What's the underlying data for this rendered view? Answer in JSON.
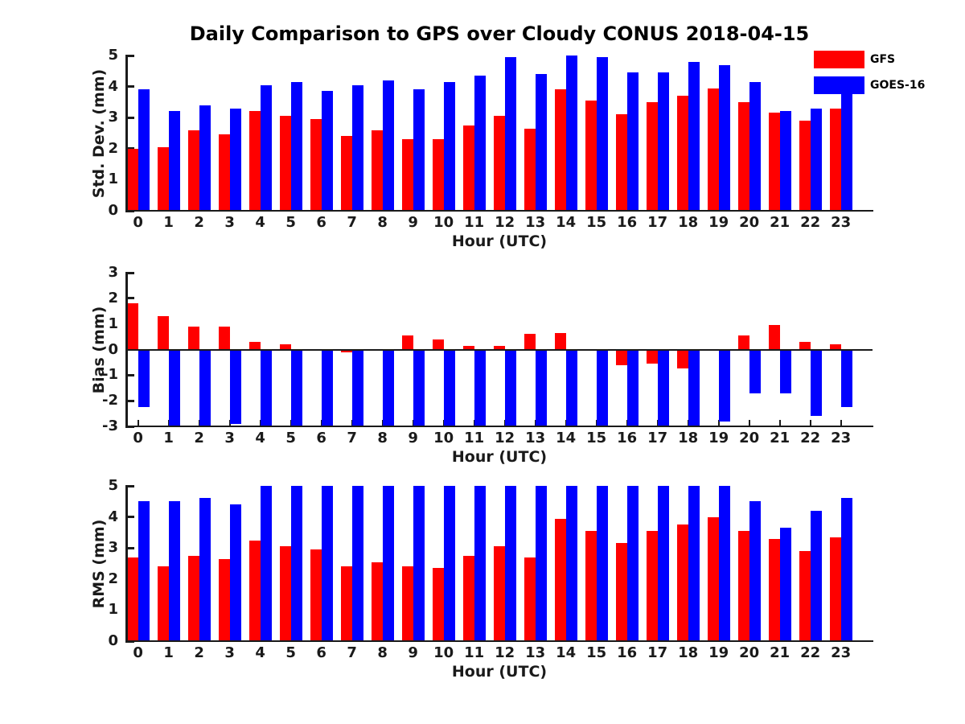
{
  "title": "Daily Comparison to GPS over Cloudy CONUS 2018-04-15",
  "legend": {
    "items": [
      {
        "label": "GFS",
        "color": "#ff0000"
      },
      {
        "label": "GOES-16",
        "color": "#0000ff"
      }
    ]
  },
  "colors": {
    "gfs": "#ff0000",
    "goes16": "#0000ff",
    "axis": "#1a1a1a"
  },
  "chart_data": [
    {
      "type": "bar",
      "id": "std-dev",
      "ylabel": "Std. Dev. (mm)",
      "xlabel": "Hour (UTC)",
      "ylim": [
        0,
        5
      ],
      "yticks": [
        0,
        1,
        2,
        3,
        4,
        5
      ],
      "grid": false,
      "categories": [
        "0",
        "1",
        "2",
        "3",
        "4",
        "5",
        "6",
        "7",
        "8",
        "9",
        "10",
        "11",
        "12",
        "13",
        "14",
        "15",
        "16",
        "17",
        "18",
        "19",
        "20",
        "21",
        "22",
        "23"
      ],
      "series": [
        {
          "name": "GFS",
          "color": "#ff0000",
          "values": [
            2.0,
            2.05,
            2.6,
            2.45,
            3.2,
            3.05,
            2.95,
            2.4,
            2.6,
            2.3,
            2.3,
            2.75,
            3.05,
            2.65,
            3.9,
            3.55,
            3.1,
            3.5,
            3.7,
            3.95,
            3.5,
            3.15,
            2.9,
            3.3
          ]
        },
        {
          "name": "GOES-16",
          "color": "#0000ff",
          "values": [
            3.9,
            3.2,
            3.4,
            3.3,
            4.05,
            4.15,
            3.85,
            4.05,
            4.2,
            3.9,
            4.15,
            4.35,
            4.95,
            4.4,
            5.0,
            4.95,
            4.45,
            4.45,
            4.8,
            4.7,
            4.15,
            3.2,
            3.3,
            4.1
          ]
        }
      ]
    },
    {
      "type": "bar",
      "id": "bias",
      "ylabel": "Bias (mm)",
      "xlabel": "Hour (UTC)",
      "ylim": [
        -3,
        3
      ],
      "yticks": [
        3,
        2,
        1,
        0,
        -1,
        -2,
        -3
      ],
      "grid": false,
      "categories": [
        "0",
        "1",
        "2",
        "3",
        "4",
        "5",
        "6",
        "7",
        "8",
        "9",
        "10",
        "11",
        "12",
        "13",
        "14",
        "15",
        "16",
        "17",
        "18",
        "19",
        "20",
        "21",
        "22",
        "23"
      ],
      "series": [
        {
          "name": "GFS",
          "color": "#ff0000",
          "values": [
            1.8,
            1.3,
            0.9,
            0.9,
            0.3,
            0.2,
            0.0,
            -0.1,
            0.0,
            0.55,
            0.4,
            0.15,
            0.15,
            0.6,
            0.65,
            -0.05,
            -0.6,
            -0.55,
            -0.75,
            -0.05,
            0.55,
            0.95,
            0.3,
            0.2
          ]
        },
        {
          "name": "GOES-16",
          "color": "#0000ff",
          "values": [
            -2.25,
            -3,
            -3,
            -2.9,
            -3,
            -3,
            -3,
            -3,
            -3,
            -3,
            -3,
            -3,
            -3,
            -3,
            -3,
            -3,
            -3,
            -3,
            -3,
            -2.8,
            -1.7,
            -1.7,
            -2.6,
            -2.25
          ]
        }
      ]
    },
    {
      "type": "bar",
      "id": "rms",
      "ylabel": "RMS (mm)",
      "xlabel": "Hour (UTC)",
      "ylim": [
        0,
        5
      ],
      "yticks": [
        0,
        1,
        2,
        3,
        4,
        5
      ],
      "grid": false,
      "categories": [
        "0",
        "1",
        "2",
        "3",
        "4",
        "5",
        "6",
        "7",
        "8",
        "9",
        "10",
        "11",
        "12",
        "13",
        "14",
        "15",
        "16",
        "17",
        "18",
        "19",
        "20",
        "21",
        "22",
        "23"
      ],
      "series": [
        {
          "name": "GFS",
          "color": "#ff0000",
          "values": [
            2.7,
            2.4,
            2.75,
            2.65,
            3.25,
            3.05,
            2.95,
            2.4,
            2.55,
            2.4,
            2.35,
            2.75,
            3.05,
            2.7,
            3.95,
            3.55,
            3.15,
            3.55,
            3.75,
            4.0,
            3.55,
            3.3,
            2.9,
            3.35
          ]
        },
        {
          "name": "GOES-16",
          "color": "#0000ff",
          "values": [
            4.5,
            4.5,
            4.6,
            4.4,
            5.0,
            5.0,
            5.0,
            5.0,
            5.0,
            5.0,
            5.0,
            5.0,
            5.0,
            5.0,
            5.0,
            5.0,
            5.0,
            5.0,
            5.0,
            5.0,
            4.5,
            3.65,
            4.2,
            4.6
          ]
        }
      ]
    }
  ]
}
